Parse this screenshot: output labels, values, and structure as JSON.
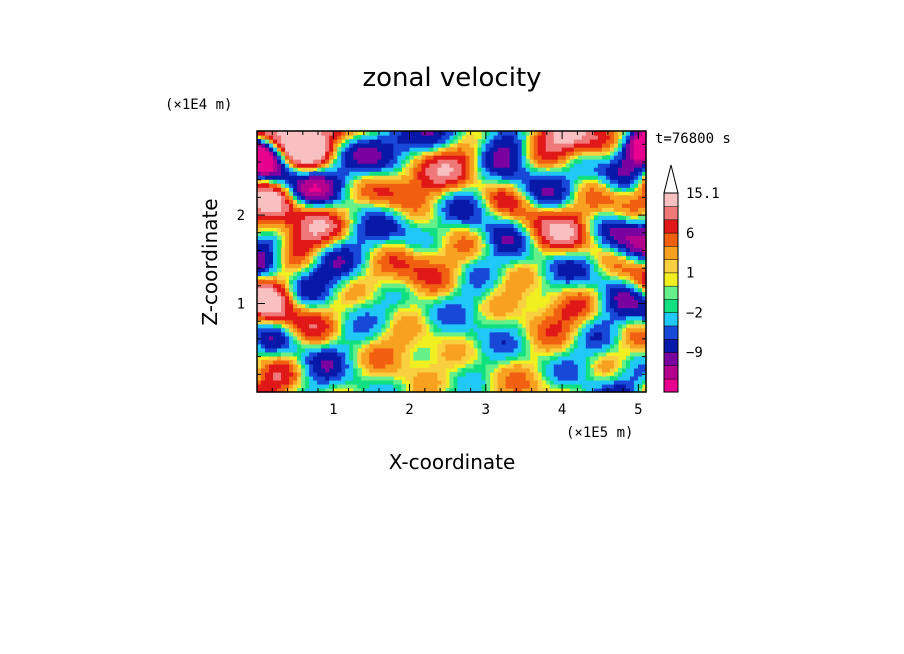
{
  "chart_data": {
    "type": "heatmap",
    "title": "zonal velocity",
    "time_label": "t=76800 s",
    "xlabel": "X-coordinate",
    "ylabel": "Z-coordinate",
    "x_unit": "(×1E5 m)",
    "y_unit": "(×1E4 m)",
    "xlim": [
      0,
      5.1
    ],
    "ylim": [
      0,
      2.95
    ],
    "x_ticks": [
      1,
      2,
      3,
      4,
      5
    ],
    "y_ticks": [
      1,
      2
    ],
    "colorbar": {
      "labels": [
        "15.1",
        "6",
        "1",
        "−2",
        "−9"
      ],
      "label_values": [
        15.1,
        6,
        1,
        -2,
        -9
      ],
      "levels": [
        -15,
        -12,
        -9,
        -6,
        -4,
        -2,
        -1,
        0,
        1,
        2,
        4,
        6,
        9,
        12,
        15.1
      ],
      "colors": [
        "#e8008e",
        "#b4008f",
        "#7a00a0",
        "#0818a8",
        "#1848d8",
        "#20c8f8",
        "#10e080",
        "#66f08a",
        "#f0f020",
        "#f8d040",
        "#f8a020",
        "#f06010",
        "#e01818",
        "#f07878",
        "#f8c0c0"
      ]
    }
  }
}
